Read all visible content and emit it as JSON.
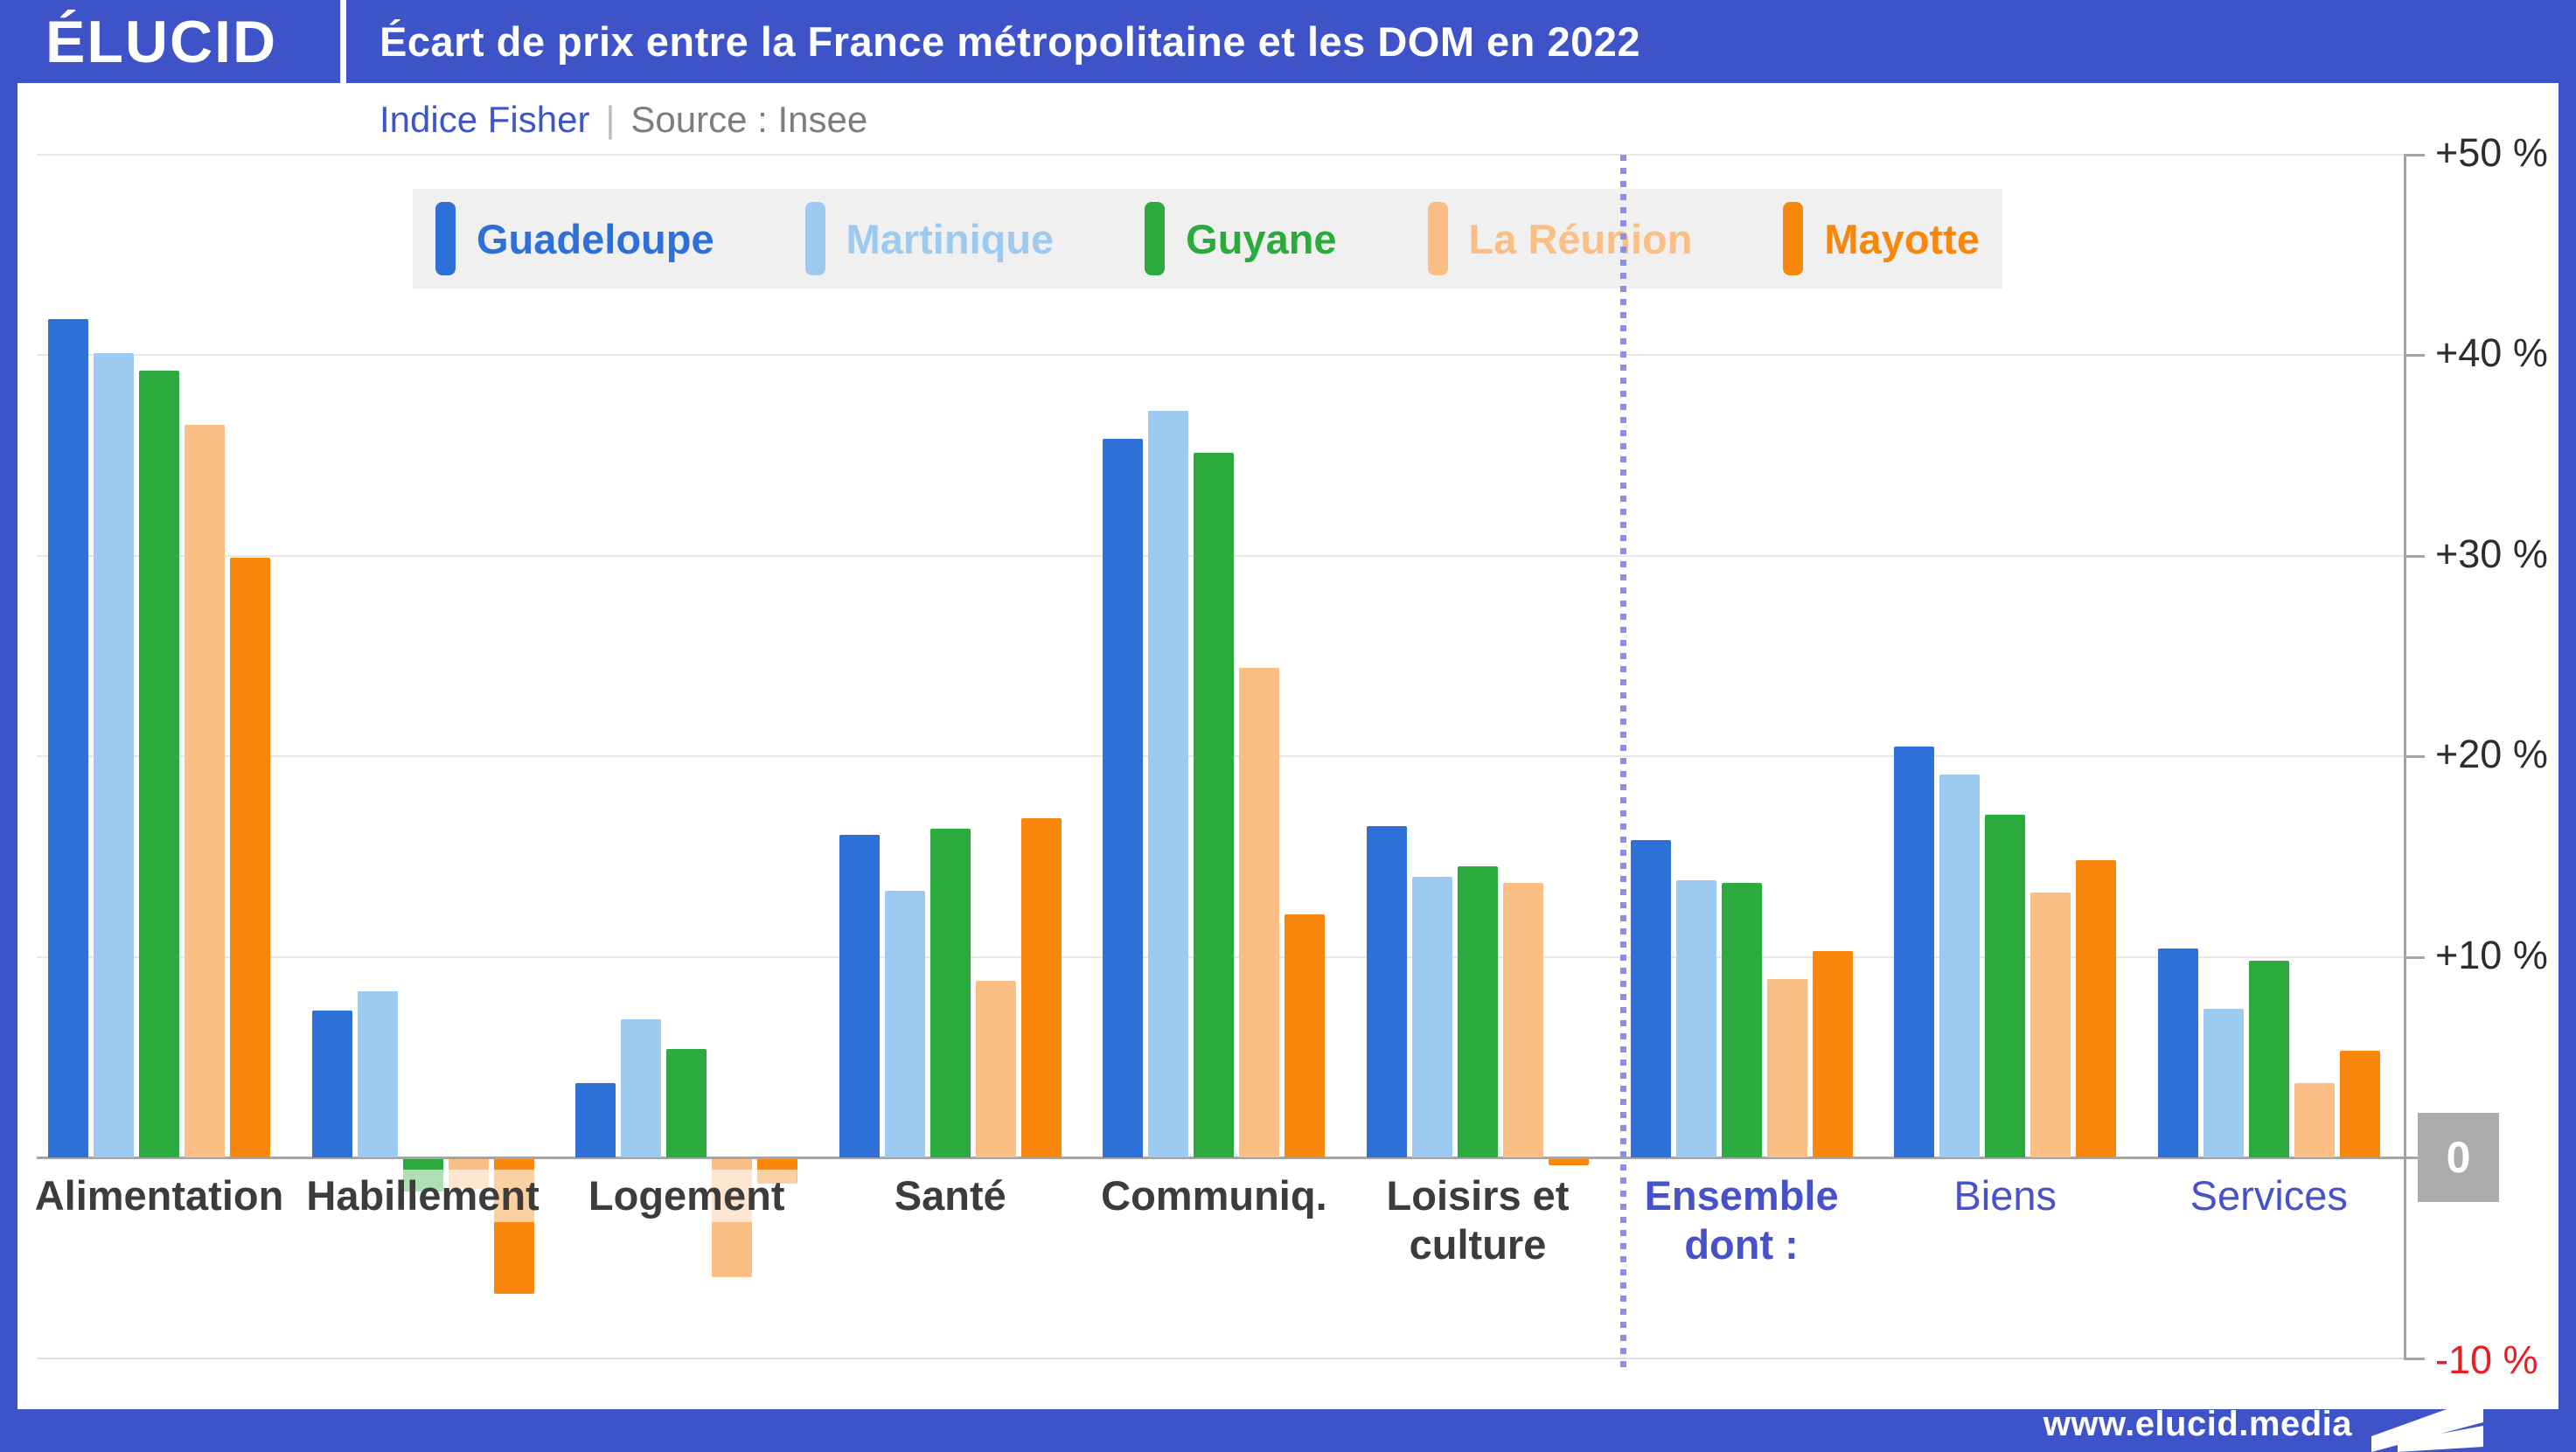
{
  "header": {
    "logo": "ÉLUCID",
    "title": "Écart de prix entre la France métropolitaine et les DOM en 2022"
  },
  "subtitle": {
    "indice": "Indice Fisher",
    "separator": "|",
    "source": "Source : Insee"
  },
  "footer": {
    "url": "www.elucid.media"
  },
  "colors": {
    "frame_blue": "#3e53c8",
    "accent_label_blue": "#4751c8",
    "negative_red": "#e81e25",
    "zero_box_gray": "#acacac",
    "separator_dotted": "#8a8ef2"
  },
  "chart_data": {
    "type": "bar",
    "title": "Écart de prix entre la France métropolitaine et les DOM en 2022",
    "subtitle": "Indice Fisher | Source : Insee",
    "unit": "%",
    "ylim": [
      -10,
      50
    ],
    "grid": true,
    "legend_position": "top",
    "axis": {
      "ticks": [
        {
          "label": "+50 %",
          "value": 50
        },
        {
          "label": "+40 %",
          "value": 40
        },
        {
          "label": "+30 %",
          "value": 30
        },
        {
          "label": "+20 %",
          "value": 20
        },
        {
          "label": "+10 %",
          "value": 10
        }
      ],
      "zero_label": "0",
      "negative_label": "-10 %",
      "negative_value": -10
    },
    "categories": [
      {
        "label": "Alimentation",
        "style": "default"
      },
      {
        "label": "Habillement",
        "style": "default"
      },
      {
        "label": "Logement",
        "style": "default"
      },
      {
        "label": "Santé",
        "style": "default"
      },
      {
        "label": "Communiq.",
        "style": "default"
      },
      {
        "label": "Loisirs et\nculture",
        "style": "default"
      },
      {
        "label": "Ensemble\ndont :",
        "style": "accent-bold"
      },
      {
        "label": "Biens",
        "style": "accent"
      },
      {
        "label": "Services",
        "style": "accent"
      }
    ],
    "series": [
      {
        "name": "Guadeloupe",
        "color": "#2e70d8",
        "values": [
          41.8,
          7.3,
          3.7,
          16.1,
          35.8,
          16.5,
          15.8,
          20.5,
          10.4
        ]
      },
      {
        "name": "Martinique",
        "color": "#9ccaf0",
        "values": [
          40.1,
          8.3,
          6.9,
          13.3,
          37.2,
          14.0,
          13.8,
          19.1,
          7.4
        ]
      },
      {
        "name": "Guyane",
        "color": "#2baa3e",
        "values": [
          39.2,
          -1.6,
          5.4,
          16.4,
          35.1,
          14.5,
          13.7,
          17.1,
          9.8
        ]
      },
      {
        "name": "La Réunion",
        "color": "#fbbe85",
        "values": [
          36.5,
          -1.5,
          -5.9,
          8.8,
          24.4,
          13.7,
          8.9,
          13.2,
          3.7
        ]
      },
      {
        "name": "Mayotte",
        "color": "#f8870b",
        "values": [
          29.9,
          -6.7,
          -1.2,
          16.9,
          12.1,
          -0.3,
          10.3,
          14.8,
          5.3
        ]
      }
    ],
    "separator_after_category_index": 5
  }
}
